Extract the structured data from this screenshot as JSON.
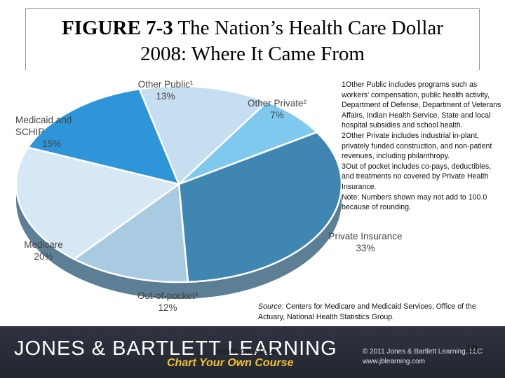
{
  "title": {
    "bold": "FIGURE 7-3",
    "rest": " The Nation’s Health Care Dollar",
    "line2": "2008: Where It Came From"
  },
  "chart_data": {
    "type": "pie",
    "categories": [
      "Private Insurance",
      "Out-of-pocket³",
      "Medicare",
      "Medicaid and SCHIP",
      "Other Public¹",
      "Other Private²"
    ],
    "values": [
      33,
      12,
      20,
      15,
      13,
      7
    ],
    "value_labels": [
      "33%",
      "12%",
      "20%",
      "15%",
      "13%",
      "7%"
    ],
    "colors": [
      "#3f86b3",
      "#a9cbe2",
      "#d6e8f4",
      "#2e96d8",
      "#c7def0",
      "#7fc9ef"
    ],
    "side_color": "#5c7f96",
    "title": "",
    "legend": "none"
  },
  "labels": {
    "other_public": {
      "name": "Other Public¹",
      "pct": "13%"
    },
    "other_private": {
      "name": "Other Private²",
      "pct": "7%"
    },
    "medicaid": {
      "line1": "Medicaid and",
      "line2": "SCHIP",
      "pct": "15%"
    },
    "medicare": {
      "name": "Medicare",
      "pct": "20%"
    },
    "private_ins": {
      "name": "Private Insurance",
      "pct": "33%"
    },
    "out_of_pocket": {
      "name": "Out-of-pocket³",
      "pct": "12%"
    }
  },
  "notes": [
    "1Other Public includes programs such as workers' compensation, public health activity, Department of Defense, Department of Veterans Affairs, Indian Health Service, State and local hospital subsidies and school health.",
    "2Other Private includes industrial in-plant, privately funded construction, and non-patient revenues, including philanthropy.",
    "3Out of pocket includes co-pays, deductibles, and treatments no covered by Private Health Insurance.",
    "Note: Numbers shown may not add to 100.0 because of rounding."
  ],
  "source": {
    "label": "Source:",
    "text": " Centers for Medicare and Medicaid Services, Office of the Actuary, National Health Statistics Group."
  },
  "footer": {
    "brand": "JONES & BARTLETT LEARNING",
    "slogan": "Chart Your Own Course",
    "copyright_line1": "© 2011 Jones & Bartlett Learning, LLC",
    "copyright_line2": "www.jblearning.com",
    "course": "Health Care USA",
    "page": "10"
  }
}
